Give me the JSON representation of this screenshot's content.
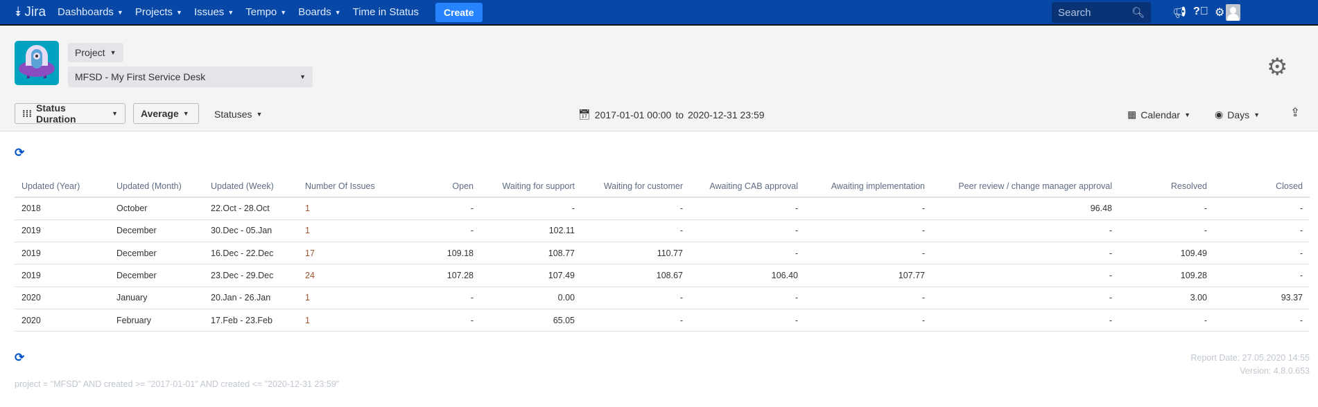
{
  "nav": {
    "logo": "Jira",
    "items": [
      "Dashboards",
      "Projects",
      "Issues",
      "Tempo",
      "Boards"
    ],
    "time_in_status": "Time in Status",
    "create": "Create",
    "search_placeholder": "Search"
  },
  "header": {
    "project_label": "Project",
    "project_value": "MFSD - My First Service Desk"
  },
  "toolbar": {
    "status_duration": "Status Duration",
    "average": "Average",
    "statuses": "Statuses",
    "date_from": "2017-01-01 00:00",
    "to": "to",
    "date_to": "2020-12-31 23:59",
    "calendar": "Calendar",
    "days": "Days"
  },
  "table": {
    "headers": [
      "Updated (Year)",
      "Updated (Month)",
      "Updated (Week)",
      "Number Of Issues",
      "Open",
      "Waiting for support",
      "Waiting for customer",
      "Awaiting CAB approval",
      "Awaiting implementation",
      "Peer review / change manager approval",
      "Resolved",
      "Closed"
    ],
    "rows": [
      [
        "2018",
        "October",
        "22.Oct - 28.Oct",
        "1",
        "-",
        "-",
        "-",
        "-",
        "-",
        "96.48",
        "-",
        "-"
      ],
      [
        "2019",
        "December",
        "30.Dec - 05.Jan",
        "1",
        "-",
        "102.11",
        "-",
        "-",
        "-",
        "-",
        "-",
        "-"
      ],
      [
        "2019",
        "December",
        "16.Dec - 22.Dec",
        "17",
        "109.18",
        "108.77",
        "110.77",
        "-",
        "-",
        "-",
        "109.49",
        "-"
      ],
      [
        "2019",
        "December",
        "23.Dec - 29.Dec",
        "24",
        "107.28",
        "107.49",
        "108.67",
        "106.40",
        "107.77",
        "-",
        "109.28",
        "-"
      ],
      [
        "2020",
        "January",
        "20.Jan - 26.Jan",
        "1",
        "-",
        "0.00",
        "-",
        "-",
        "-",
        "-",
        "3.00",
        "93.37"
      ],
      [
        "2020",
        "February",
        "17.Feb - 23.Feb",
        "1",
        "-",
        "65.05",
        "-",
        "-",
        "-",
        "-",
        "-",
        "-"
      ]
    ]
  },
  "footer": {
    "query": "project = \"MFSD\" AND created >= \"2017-01-01\" AND created <= \"2020-12-31 23:59\"",
    "report_date": "Report Date: 27.05.2020 14:55",
    "version": "Version: 4.8.0.653"
  },
  "colors": {
    "nav": "#0747a6",
    "create": "#2684ff",
    "accent": "#0052cc",
    "count": "#a0522d"
  }
}
